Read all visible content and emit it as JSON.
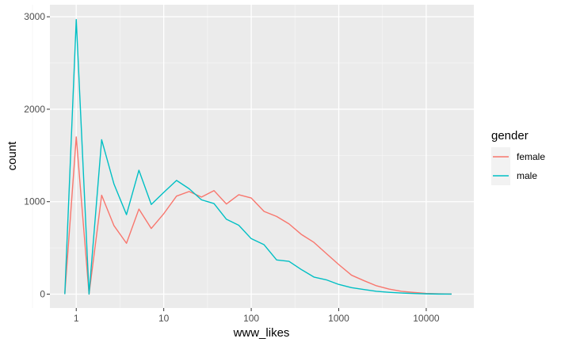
{
  "chart_data": {
    "type": "line",
    "xlabel": "www_likes",
    "ylabel": "count",
    "x_scale": "log10",
    "xlim": [
      0.5,
      35000
    ],
    "ylim": [
      -150,
      3130
    ],
    "x_ticks": [
      1,
      10,
      100,
      1000,
      10000
    ],
    "x_tick_labels": [
      "1",
      "10",
      "100",
      "1000",
      "10000"
    ],
    "y_ticks": [
      0,
      1000,
      2000,
      3000
    ],
    "y_tick_labels": [
      "0",
      "1000",
      "2000",
      "3000"
    ],
    "grid": true,
    "legend": {
      "title": "gender",
      "position": "right"
    },
    "series": [
      {
        "name": "female",
        "color": "#F8766D",
        "points": [
          [
            0.74,
            0
          ],
          [
            1.0,
            1700
          ],
          [
            1.4,
            0
          ],
          [
            1.95,
            1070
          ],
          [
            2.7,
            740
          ],
          [
            3.75,
            550
          ],
          [
            5.2,
            920
          ],
          [
            7.2,
            710
          ],
          [
            10.0,
            870
          ],
          [
            14.0,
            1060
          ],
          [
            19.5,
            1110
          ],
          [
            27.0,
            1050
          ],
          [
            37.5,
            1120
          ],
          [
            52.0,
            975
          ],
          [
            72.0,
            1075
          ],
          [
            100.0,
            1040
          ],
          [
            140.0,
            895
          ],
          [
            195.0,
            840
          ],
          [
            270.0,
            760
          ],
          [
            375.0,
            645
          ],
          [
            520.0,
            560
          ],
          [
            720.0,
            440
          ],
          [
            1000.0,
            320
          ],
          [
            1400.0,
            205
          ],
          [
            1950.0,
            145
          ],
          [
            2700.0,
            90
          ],
          [
            3750.0,
            55
          ],
          [
            5200.0,
            30
          ],
          [
            7200.0,
            18
          ],
          [
            10000.0,
            8
          ],
          [
            14000.0,
            3
          ],
          [
            19500.0,
            1
          ]
        ]
      },
      {
        "name": "male",
        "color": "#00BFC4",
        "points": [
          [
            0.74,
            0
          ],
          [
            1.0,
            2970
          ],
          [
            1.4,
            0
          ],
          [
            1.95,
            1670
          ],
          [
            2.7,
            1190
          ],
          [
            3.75,
            860
          ],
          [
            5.2,
            1340
          ],
          [
            7.2,
            970
          ],
          [
            10.0,
            1100
          ],
          [
            14.0,
            1230
          ],
          [
            19.5,
            1140
          ],
          [
            27.0,
            1020
          ],
          [
            37.5,
            980
          ],
          [
            52.0,
            810
          ],
          [
            72.0,
            745
          ],
          [
            100.0,
            600
          ],
          [
            140.0,
            535
          ],
          [
            195.0,
            370
          ],
          [
            270.0,
            355
          ],
          [
            375.0,
            265
          ],
          [
            520.0,
            185
          ],
          [
            720.0,
            155
          ],
          [
            1000.0,
            105
          ],
          [
            1400.0,
            70
          ],
          [
            1950.0,
            50
          ],
          [
            2700.0,
            30
          ],
          [
            3750.0,
            20
          ],
          [
            5200.0,
            12
          ],
          [
            7200.0,
            7
          ],
          [
            10000.0,
            3
          ],
          [
            14000.0,
            1
          ],
          [
            19500.0,
            0
          ]
        ]
      }
    ]
  }
}
